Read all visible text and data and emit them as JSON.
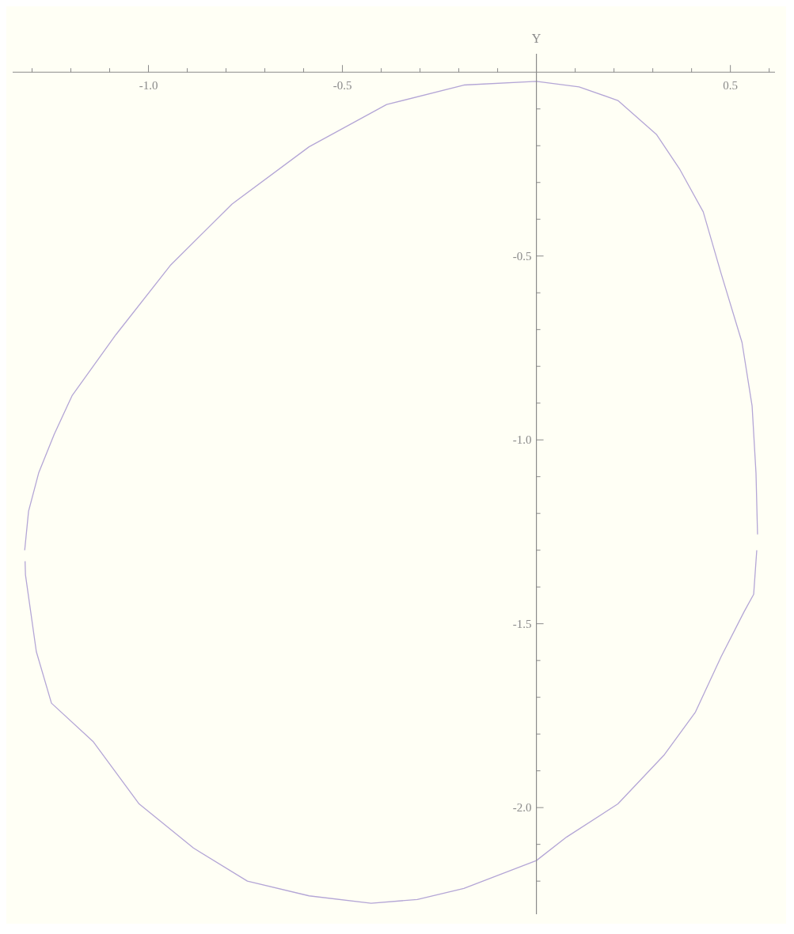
{
  "chart_data": {
    "type": "line",
    "ylabel": "Y",
    "marker": "none",
    "xlim": [
      -1.35,
      0.615
    ],
    "ylim": [
      -2.29,
      0.05
    ],
    "xticks": [
      {
        "value": -1.3,
        "label": null
      },
      {
        "value": -1.2,
        "label": null
      },
      {
        "value": -1.1,
        "label": null
      },
      {
        "value": -1.0,
        "label": "-1.0"
      },
      {
        "value": -0.9,
        "label": null
      },
      {
        "value": -0.8,
        "label": null
      },
      {
        "value": -0.7,
        "label": null
      },
      {
        "value": -0.6,
        "label": null
      },
      {
        "value": -0.5,
        "label": "-0.5"
      },
      {
        "value": -0.4,
        "label": null
      },
      {
        "value": -0.3,
        "label": null
      },
      {
        "value": -0.2,
        "label": null
      },
      {
        "value": -0.1,
        "label": null
      },
      {
        "value": 0.1,
        "label": null
      },
      {
        "value": 0.2,
        "label": null
      },
      {
        "value": 0.3,
        "label": null
      },
      {
        "value": 0.4,
        "label": null
      },
      {
        "value": 0.5,
        "label": "0.5"
      },
      {
        "value": 0.6,
        "label": null
      }
    ],
    "yticks": [
      {
        "value": -0.1,
        "label": null
      },
      {
        "value": -0.2,
        "label": null
      },
      {
        "value": -0.3,
        "label": null
      },
      {
        "value": -0.4,
        "label": null
      },
      {
        "value": -0.5,
        "label": "-0.5"
      },
      {
        "value": -0.6,
        "label": null
      },
      {
        "value": -0.7,
        "label": null
      },
      {
        "value": -0.8,
        "label": null
      },
      {
        "value": -0.9,
        "label": null
      },
      {
        "value": -1.0,
        "label": "-1.0"
      },
      {
        "value": -1.1,
        "label": null
      },
      {
        "value": -1.2,
        "label": null
      },
      {
        "value": -1.3,
        "label": null
      },
      {
        "value": -1.4,
        "label": null
      },
      {
        "value": -1.5,
        "label": "-1.5"
      },
      {
        "value": -1.6,
        "label": null
      },
      {
        "value": -1.7,
        "label": null
      },
      {
        "value": -1.8,
        "label": null
      },
      {
        "value": -1.9,
        "label": null
      },
      {
        "value": -2.0,
        "label": "-2.0"
      },
      {
        "value": -2.1,
        "label": null
      },
      {
        "value": -2.2,
        "label": null
      }
    ],
    "series": [
      {
        "color": "#b4a6d6",
        "x": [
          -1.319,
          -1.309,
          -1.283,
          -1.243,
          -1.197,
          -1.084,
          -0.944,
          -0.785,
          -0.586,
          -0.386,
          -0.187,
          0,
          0.11,
          0.21,
          0.31,
          0.37,
          0.43,
          0.476,
          0.53,
          0.556,
          0.566,
          0.57
        ],
        "values": [
          -1.3,
          -1.194,
          -1.09,
          -0.985,
          -0.88,
          -0.714,
          -0.526,
          -0.359,
          -0.203,
          -0.088,
          -0.035,
          -0.025,
          -0.04,
          -0.077,
          -0.17,
          -0.265,
          -0.38,
          -0.547,
          -0.735,
          -0.908,
          -1.09,
          -1.257
        ]
      },
      {
        "color": "#b4a6d6",
        "x": [
          -1.318,
          -1.317,
          -1.289,
          -1.25,
          -1.143,
          -1.024,
          -0.884,
          -0.745,
          -0.586,
          -0.426,
          -0.307,
          -0.187,
          0,
          0.078,
          0.21,
          0.33,
          0.41,
          0.476,
          0.536,
          0.56,
          0.568
        ],
        "values": [
          -1.33,
          -1.367,
          -1.576,
          -1.716,
          -1.82,
          -1.99,
          -2.11,
          -2.2,
          -2.24,
          -2.26,
          -2.25,
          -2.22,
          -2.144,
          -2.08,
          -1.99,
          -1.856,
          -1.74,
          -1.59,
          -1.466,
          -1.42,
          -1.3
        ]
      }
    ]
  }
}
